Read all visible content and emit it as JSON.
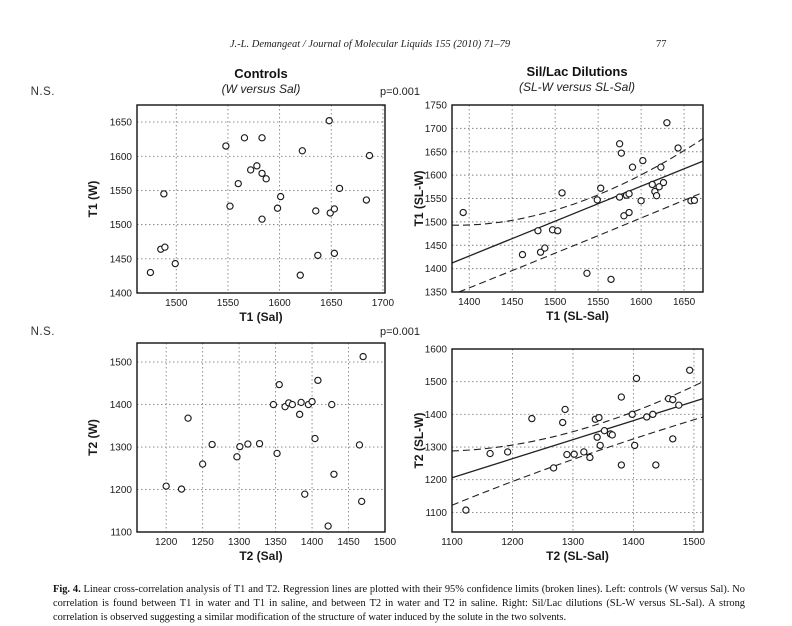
{
  "page": {
    "running_head": "J.-L. Demangeat / Journal of Molecular Liquids 155 (2010) 71–79",
    "page_number": "77",
    "caption_label": "Fig. 4.",
    "caption_text": " Linear cross-correlation analysis of T1 and T2. Regression lines are plotted with their 95% confidence limits (broken lines). Left: controls (W versus Sal). No correlation is found between T1 in water and T1 in saline, and between T2 in water and T2 in saline. Right: Sil/Lac dilutions (SL-W versus SL-Sal). A strong correlation is observed suggesting a similar modification of the structure of water induced by the solute in the two solvents."
  },
  "columns": {
    "left": {
      "title": "Controls",
      "subtitle": "(W versus Sal)"
    },
    "right": {
      "title": "Sil/Lac Dilutions",
      "subtitle": "(SL-W versus SL-Sal)"
    }
  },
  "colors": {
    "accent_red": "#cc1d12",
    "ink": "#1a1a1a"
  },
  "chart_data": [
    {
      "key": "t1_controls",
      "type": "scatter",
      "title": "Controls (W versus Sal)",
      "xlabel": "T1 (Sal)",
      "ylabel": "T1 (W)",
      "xlim": [
        1462,
        1702
      ],
      "ylim": [
        1400,
        1675
      ],
      "xticks": [
        1500,
        1550,
        1600,
        1650,
        1700
      ],
      "yticks": [
        1400,
        1450,
        1500,
        1550,
        1600,
        1650
      ],
      "grid": true,
      "legend": null,
      "annotation": {
        "text": "N.S.",
        "circled": false
      },
      "points": [
        [
          1475,
          1430
        ],
        [
          1485,
          1464
        ],
        [
          1489,
          1467
        ],
        [
          1488,
          1545
        ],
        [
          1499,
          1443
        ],
        [
          1548,
          1615
        ],
        [
          1552,
          1527
        ],
        [
          1560,
          1560
        ],
        [
          1566,
          1627
        ],
        [
          1572,
          1580
        ],
        [
          1578,
          1586
        ],
        [
          1583,
          1627
        ],
        [
          1583,
          1575
        ],
        [
          1587,
          1567
        ],
        [
          1583,
          1508
        ],
        [
          1598,
          1524
        ],
        [
          1601,
          1541
        ],
        [
          1620,
          1426
        ],
        [
          1622,
          1608
        ],
        [
          1635,
          1520
        ],
        [
          1637,
          1455
        ],
        [
          1648,
          1652
        ],
        [
          1649,
          1517
        ],
        [
          1653,
          1523
        ],
        [
          1653,
          1458
        ],
        [
          1658,
          1553
        ],
        [
          1684,
          1536
        ],
        [
          1687,
          1601
        ]
      ]
    },
    {
      "key": "t1_dilutions",
      "type": "scatter",
      "title": "Sil/Lac Dilutions (SL-W versus SL-Sal)",
      "xlabel": "T1 (SL-Sal)",
      "ylabel": "T1 (SL-W)",
      "xlim": [
        1380,
        1672
      ],
      "ylim": [
        1350,
        1750
      ],
      "xticks": [
        1400,
        1450,
        1500,
        1550,
        1600,
        1650
      ],
      "yticks": [
        1350,
        1400,
        1450,
        1500,
        1550,
        1600,
        1650,
        1700,
        1750
      ],
      "grid": true,
      "legend": null,
      "annotation": {
        "text": "p=0.001",
        "circled": true
      },
      "regression": {
        "solid": [
          [
            1380,
            1412
          ],
          [
            1672,
            1630
          ]
        ],
        "dashed_upper": [
          [
            1380,
            1493
          ],
          [
            1520,
            1537
          ],
          [
            1672,
            1678
          ]
        ],
        "dashed_lower": [
          [
            1388,
            1350
          ],
          [
            1520,
            1448
          ],
          [
            1672,
            1563
          ]
        ]
      },
      "points": [
        [
          1393,
          1520
        ],
        [
          1462,
          1430
        ],
        [
          1480,
          1481
        ],
        [
          1483,
          1435
        ],
        [
          1488,
          1444
        ],
        [
          1497,
          1483
        ],
        [
          1503,
          1481
        ],
        [
          1508,
          1562
        ],
        [
          1537,
          1390
        ],
        [
          1549,
          1547
        ],
        [
          1553,
          1572
        ],
        [
          1565,
          1377
        ],
        [
          1575,
          1667
        ],
        [
          1577,
          1647
        ],
        [
          1575,
          1553
        ],
        [
          1583,
          1557
        ],
        [
          1586,
          1560
        ],
        [
          1580,
          1513
        ],
        [
          1586,
          1520
        ],
        [
          1590,
          1617
        ],
        [
          1600,
          1545
        ],
        [
          1602,
          1631
        ],
        [
          1613,
          1580
        ],
        [
          1616,
          1565
        ],
        [
          1618,
          1556
        ],
        [
          1621,
          1575
        ],
        [
          1623,
          1617
        ],
        [
          1626,
          1584
        ],
        [
          1630,
          1712
        ],
        [
          1643,
          1658
        ],
        [
          1658,
          1545
        ],
        [
          1662,
          1546
        ]
      ]
    },
    {
      "key": "t2_controls",
      "type": "scatter",
      "title": "Controls (W versus Sal)",
      "xlabel": "T2 (Sal)",
      "ylabel": "T2 (W)",
      "xlim": [
        1160,
        1500
      ],
      "ylim": [
        1100,
        1545
      ],
      "xticks": [
        1200,
        1250,
        1300,
        1350,
        1400,
        1450,
        1500
      ],
      "yticks": [
        1100,
        1200,
        1300,
        1400,
        1500
      ],
      "grid": true,
      "legend": null,
      "annotation": {
        "text": "N.S.",
        "circled": false
      },
      "points": [
        [
          1200,
          1208
        ],
        [
          1221,
          1201
        ],
        [
          1230,
          1368
        ],
        [
          1250,
          1260
        ],
        [
          1263,
          1306
        ],
        [
          1297,
          1277
        ],
        [
          1301,
          1301
        ],
        [
          1312,
          1307
        ],
        [
          1328,
          1308
        ],
        [
          1347,
          1400
        ],
        [
          1352,
          1285
        ],
        [
          1355,
          1447
        ],
        [
          1363,
          1395
        ],
        [
          1368,
          1404
        ],
        [
          1373,
          1400
        ],
        [
          1383,
          1377
        ],
        [
          1385,
          1405
        ],
        [
          1390,
          1189
        ],
        [
          1395,
          1400
        ],
        [
          1400,
          1407
        ],
        [
          1404,
          1320
        ],
        [
          1408,
          1457
        ],
        [
          1422,
          1114
        ],
        [
          1427,
          1400
        ],
        [
          1430,
          1236
        ],
        [
          1465,
          1305
        ],
        [
          1468,
          1172
        ],
        [
          1470,
          1513
        ]
      ]
    },
    {
      "key": "t2_dilutions",
      "type": "scatter",
      "title": "Sil/Lac Dilutions (SL-W versus SL-Sal)",
      "xlabel": "T2 (SL-Sal)",
      "ylabel": "T2 (SL-W)",
      "xlim": [
        1100,
        1515
      ],
      "ylim": [
        1040,
        1600
      ],
      "xticks": [
        1100,
        1200,
        1300,
        1400,
        1500
      ],
      "yticks": [
        1100,
        1200,
        1300,
        1400,
        1500,
        1600
      ],
      "grid": true,
      "legend": null,
      "annotation": {
        "text": "p=0.001",
        "circled": true
      },
      "regression": {
        "solid": [
          [
            1100,
            1206
          ],
          [
            1515,
            1448
          ]
        ],
        "dashed_upper": [
          [
            1100,
            1288
          ],
          [
            1300,
            1347
          ],
          [
            1515,
            1500
          ]
        ],
        "dashed_lower": [
          [
            1100,
            1122
          ],
          [
            1300,
            1262
          ],
          [
            1515,
            1392
          ]
        ]
      },
      "points": [
        [
          1123,
          1107
        ],
        [
          1163,
          1280
        ],
        [
          1192,
          1285
        ],
        [
          1232,
          1387
        ],
        [
          1268,
          1236
        ],
        [
          1283,
          1375
        ],
        [
          1287,
          1415
        ],
        [
          1290,
          1277
        ],
        [
          1302,
          1278
        ],
        [
          1318,
          1285
        ],
        [
          1328,
          1268
        ],
        [
          1337,
          1385
        ],
        [
          1343,
          1390
        ],
        [
          1340,
          1330
        ],
        [
          1345,
          1305
        ],
        [
          1352,
          1350
        ],
        [
          1362,
          1340
        ],
        [
          1365,
          1337
        ],
        [
          1380,
          1245
        ],
        [
          1380,
          1453
        ],
        [
          1398,
          1400
        ],
        [
          1402,
          1305
        ],
        [
          1405,
          1510
        ],
        [
          1422,
          1392
        ],
        [
          1432,
          1400
        ],
        [
          1437,
          1245
        ],
        [
          1458,
          1448
        ],
        [
          1465,
          1445
        ],
        [
          1465,
          1325
        ],
        [
          1475,
          1428
        ],
        [
          1493,
          1535
        ]
      ]
    }
  ]
}
